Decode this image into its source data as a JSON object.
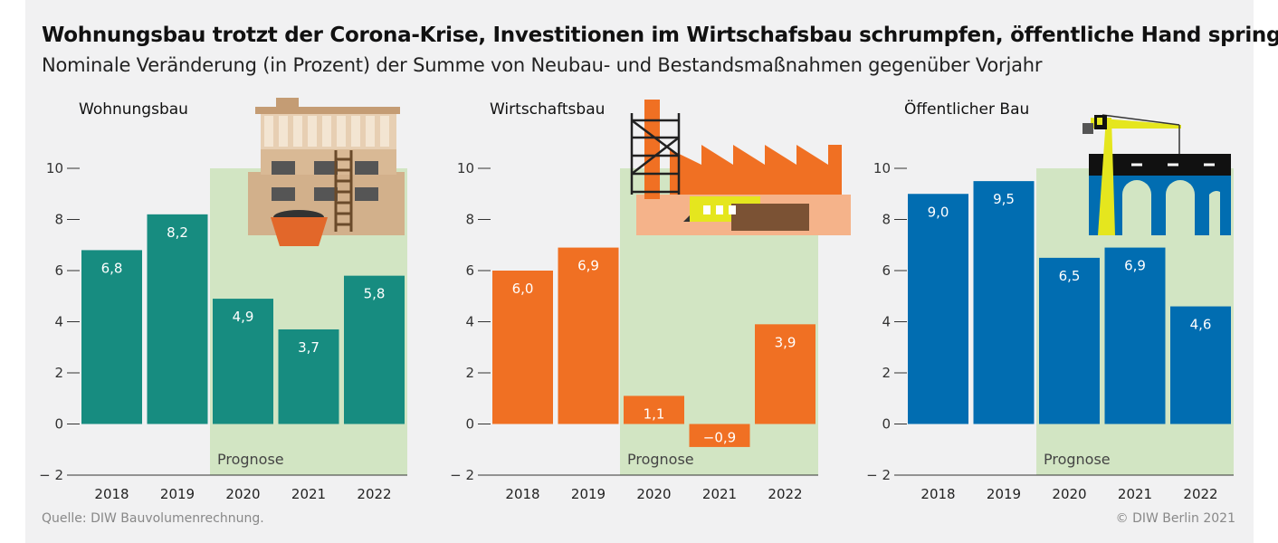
{
  "title": "Wohnungsbau trotzt der Corona-Krise, Investitionen im Wirtschafsbau schrumpfen, öffentliche Hand springt ein",
  "subtitle": "Nominale Veränderung (in Prozent) der Summe von Neubau- und Bestandsmaßnahmen gegenüber Vorjahr",
  "source": "Quelle: DIW Bauvolumenrechnung.",
  "copyright": "© DIW Berlin 2021",
  "chart_data": [
    {
      "type": "bar",
      "title": "Wohnungsbau",
      "categories": [
        "2018",
        "2019",
        "2020",
        "2021",
        "2022"
      ],
      "values": [
        6.8,
        8.2,
        4.9,
        3.7,
        5.8
      ],
      "labels": [
        "6,8",
        "8,2",
        "4,9",
        "3,7",
        "5,8"
      ],
      "color": "#178c80",
      "ylim": [
        -2,
        10
      ],
      "yticks": [
        "− 2",
        "0",
        "2",
        "4",
        "6",
        "8",
        "10"
      ],
      "forecast_label": "Prognose",
      "forecast_from": "2020",
      "icon": "residential-building-icon"
    },
    {
      "type": "bar",
      "title": "Wirtschaftsbau",
      "categories": [
        "2018",
        "2019",
        "2020",
        "2021",
        "2022"
      ],
      "values": [
        6.0,
        6.9,
        1.1,
        -0.9,
        3.9
      ],
      "labels": [
        "6,0",
        "6,9",
        "1,1",
        "−0,9",
        "3,9"
      ],
      "color": "#f07023",
      "ylim": [
        -2,
        10
      ],
      "yticks": [
        "− 2",
        "0",
        "2",
        "4",
        "6",
        "8",
        "10"
      ],
      "forecast_label": "Prognose",
      "forecast_from": "2020",
      "icon": "factory-icon"
    },
    {
      "type": "bar",
      "title": "Öffentlicher Bau",
      "categories": [
        "2018",
        "2019",
        "2020",
        "2021",
        "2022"
      ],
      "values": [
        9.0,
        9.5,
        6.5,
        6.9,
        4.6
      ],
      "labels": [
        "9,0",
        "9,5",
        "6,5",
        "6,9",
        "4,6"
      ],
      "color": "#016db1",
      "ylim": [
        -2,
        10
      ],
      "yticks": [
        "− 2",
        "0",
        "2",
        "4",
        "6",
        "8",
        "10"
      ],
      "forecast_label": "Prognose",
      "forecast_from": "2020",
      "icon": "bridge-crane-icon"
    }
  ],
  "colors": {
    "forecast_band": "#d2e5c3",
    "axis": "#333333"
  }
}
